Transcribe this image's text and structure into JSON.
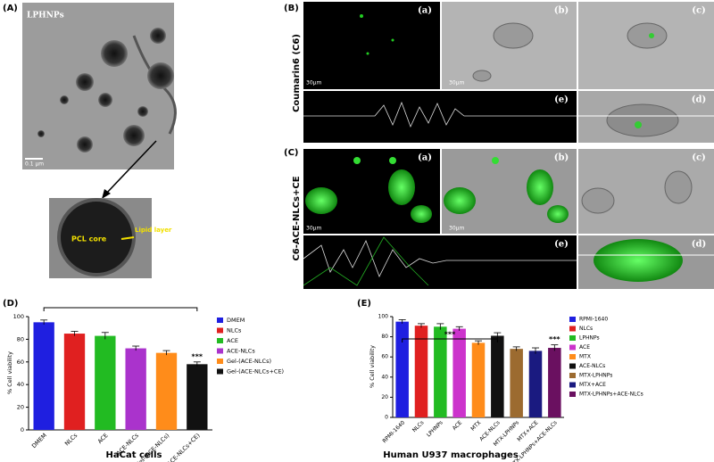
{
  "figure": {
    "panel_a": {
      "label": "(A)",
      "sample": "LPHNPs",
      "scale": "0.1 µm",
      "core": "PCL core",
      "layer": "Lipid layer"
    },
    "panel_b": {
      "label": "(B)",
      "row_label": "Coumarin6 (C6)",
      "subpanels": [
        "(a)",
        "(b)",
        "(c)",
        "(e)",
        "(d)"
      ],
      "scales": [
        "30µm",
        "30µm"
      ]
    },
    "panel_c": {
      "label": "(C)",
      "row_label": "C6-ACE-NLCs+CE",
      "subpanels": [
        "(a)",
        "(b)",
        "(c)",
        "(e)",
        "(d)"
      ],
      "scales": [
        "30µm",
        "30µm"
      ]
    },
    "panel_d_label": "(D)",
    "panel_e_label": "(E)"
  },
  "chart_data": [
    {
      "type": "bar",
      "xlabel": "HaCat cells",
      "ylabel": "% Cell viability",
      "categories": [
        "DMEM",
        "NLCs",
        "ACE",
        "ACE-NLCs",
        "Gel-(ACE-NLCs)",
        "Gel-(ACE-NLCs+CE)"
      ],
      "values": [
        95,
        85,
        83,
        72,
        68,
        58
      ],
      "errors": [
        2,
        2,
        3,
        2,
        2,
        2
      ],
      "colors": [
        "#1f1fe0",
        "#e02020",
        "#22bb22",
        "#aa33cc",
        "#ff8c1a",
        "#111111"
      ],
      "ylim": [
        0,
        100
      ],
      "yticks": [
        0,
        20,
        40,
        60,
        80,
        100
      ],
      "annotations": [
        "***"
      ],
      "legend": "right"
    },
    {
      "type": "bar",
      "xlabel": "Human U937 macrophages",
      "ylabel": "% Cell viability",
      "categories": [
        "RPMI-1640",
        "NLCs",
        "LPHNPs",
        "ACE",
        "MTX",
        "ACE-NLCs",
        "MTX-LPHNPs",
        "MTX+ACE",
        "MTX-LPHNPs+ACE-NLCs"
      ],
      "values": [
        95,
        91,
        90,
        88,
        74,
        81,
        68,
        66,
        69
      ],
      "errors": [
        2,
        2,
        3,
        2,
        2,
        3,
        2,
        3,
        3
      ],
      "colors": [
        "#1f1fe0",
        "#e02020",
        "#22bb22",
        "#cc33cc",
        "#ff8c1a",
        "#111111",
        "#9c6b30",
        "#1a1a80",
        "#6a1060"
      ],
      "ylim": [
        0,
        100
      ],
      "yticks": [
        0,
        20,
        40,
        60,
        80,
        100
      ],
      "annotations": [
        "***",
        "***"
      ],
      "legend": "right"
    }
  ]
}
